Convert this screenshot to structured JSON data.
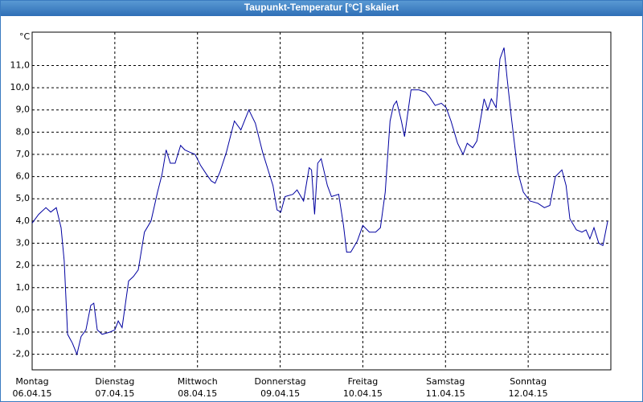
{
  "chart_data": {
    "type": "line",
    "title": "Taupunkt-Temperatur [°C] skaliert",
    "y_unit": "°C",
    "xlim": [
      0,
      168
    ],
    "ylim": [
      -2.7,
      12.5
    ],
    "grid": true,
    "xticks": [
      {
        "value": 0,
        "label": "Montag",
        "date": "06.04.15"
      },
      {
        "value": 24,
        "label": "Dienstag",
        "date": "07.04.15"
      },
      {
        "value": 48,
        "label": "Mittwoch",
        "date": "08.04.15"
      },
      {
        "value": 72,
        "label": "Donnerstag",
        "date": "09.04.15"
      },
      {
        "value": 96,
        "label": "Freitag",
        "date": "10.04.15"
      },
      {
        "value": 120,
        "label": "Samstag",
        "date": "11.04.15"
      },
      {
        "value": 144,
        "label": "Sonntag",
        "date": "12.04.15"
      }
    ],
    "yticks": [
      {
        "value": -2,
        "label": "-2,0"
      },
      {
        "value": -1,
        "label": "-1,0"
      },
      {
        "value": 0,
        "label": "0,0"
      },
      {
        "value": 1,
        "label": "1,0"
      },
      {
        "value": 2,
        "label": "2,0"
      },
      {
        "value": 3,
        "label": "3,0"
      },
      {
        "value": 4,
        "label": "4,0"
      },
      {
        "value": 5,
        "label": "5,0"
      },
      {
        "value": 6,
        "label": "6,0"
      },
      {
        "value": 7,
        "label": "7,0"
      },
      {
        "value": 8,
        "label": "8,0"
      },
      {
        "value": 9,
        "label": "9,0"
      },
      {
        "value": 10,
        "label": "10,0"
      },
      {
        "value": 11,
        "label": "11,0"
      }
    ],
    "series": [
      {
        "color": "#0000a0",
        "x": [
          0,
          1.9,
          4.0,
          5.4,
          7.0,
          8.4,
          9.3,
          10.3,
          11.7,
          13.0,
          14.2,
          15.6,
          17.0,
          17.9,
          18.9,
          20.3,
          22.6,
          24.0,
          25.0,
          26.1,
          28.0,
          29.4,
          30.8,
          32.6,
          34.5,
          36.4,
          37.7,
          38.9,
          40.1,
          41.5,
          43.1,
          44.3,
          45.7,
          47.3,
          48.9,
          50.6,
          52.0,
          53.1,
          54.5,
          56.4,
          58.7,
          60.6,
          62.9,
          64.8,
          66.9,
          68.7,
          69.9,
          71.1,
          72.2,
          73.4,
          75.7,
          76.9,
          78.8,
          80.4,
          81.1,
          82.0,
          82.9,
          83.9,
          85.7,
          86.9,
          89.0,
          90.4,
          91.3,
          92.5,
          94.4,
          96.0,
          97.9,
          99.7,
          101.1,
          102.5,
          103.9,
          104.9,
          105.8,
          107.2,
          108.1,
          110.0,
          112.3,
          114.2,
          115.3,
          117.0,
          118.8,
          120.2,
          121.6,
          123.5,
          125.1,
          126.3,
          127.9,
          129.1,
          131.2,
          132.3,
          133.3,
          134.7,
          135.8,
          137.0,
          137.9,
          139.1,
          141.0,
          142.6,
          144.5,
          146.8,
          148.7,
          150.3,
          151.9,
          153.8,
          155.0,
          156.1,
          158.0,
          159.6,
          160.8,
          161.9,
          163.1,
          164.5,
          165.7,
          167.1
        ],
        "values": [
          3.9,
          4.3,
          4.6,
          4.4,
          4.6,
          3.7,
          2.2,
          -1.1,
          -1.5,
          -2.0,
          -1.2,
          -0.9,
          0.2,
          0.3,
          -0.9,
          -1.1,
          -1.0,
          -0.9,
          -0.5,
          -0.8,
          1.3,
          1.5,
          1.8,
          3.5,
          4.0,
          5.3,
          6.1,
          7.2,
          6.6,
          6.6,
          7.4,
          7.2,
          7.1,
          7.0,
          6.5,
          6.1,
          5.8,
          5.7,
          6.2,
          7.1,
          8.5,
          8.1,
          9.0,
          8.4,
          7.1,
          6.2,
          5.6,
          4.5,
          4.4,
          5.1,
          5.2,
          5.4,
          4.9,
          6.4,
          6.3,
          4.3,
          6.6,
          6.8,
          5.6,
          5.1,
          5.2,
          3.8,
          2.6,
          2.6,
          3.1,
          3.8,
          3.5,
          3.5,
          3.7,
          5.3,
          8.5,
          9.2,
          9.4,
          8.5,
          7.8,
          9.9,
          9.9,
          9.8,
          9.6,
          9.2,
          9.3,
          9.1,
          8.5,
          7.5,
          7.0,
          7.5,
          7.3,
          7.6,
          9.5,
          9.0,
          9.5,
          9.1,
          11.3,
          11.8,
          10.4,
          8.7,
          6.2,
          5.3,
          4.9,
          4.8,
          4.6,
          4.7,
          6.0,
          6.3,
          5.6,
          4.1,
          3.6,
          3.5,
          3.6,
          3.2,
          3.7,
          3.0,
          2.9,
          4.0
        ]
      }
    ]
  }
}
